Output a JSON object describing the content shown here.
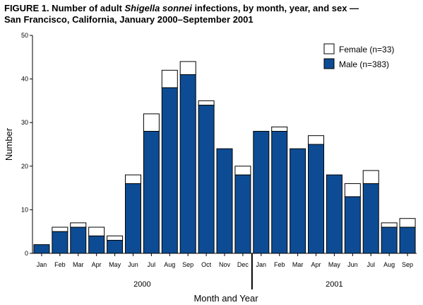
{
  "figure": {
    "title_part1": "FIGURE 1. Number of adult ",
    "title_italic": "Shigella sonnei",
    "title_part2": " infections, by month, year, and sex —",
    "title_line2": "San Francisco, California, January 2000–September 2001"
  },
  "chart_data": {
    "type": "bar",
    "stacked": true,
    "xlabel": "Month and Year",
    "ylabel": "Number",
    "ylim": [
      0,
      50
    ],
    "yticks": [
      0,
      10,
      20,
      30,
      40,
      50
    ],
    "legend_placement": "top-right",
    "grid": false,
    "categories": [
      "Jan",
      "Feb",
      "Mar",
      "Apr",
      "May",
      "Jun",
      "Jul",
      "Aug",
      "Sep",
      "Oct",
      "Nov",
      "Dec",
      "Jan",
      "Feb",
      "Mar",
      "Apr",
      "May",
      "Jun",
      "Jul",
      "Aug",
      "Sep"
    ],
    "year_groups": [
      {
        "label": "2000",
        "start": 0,
        "end": 11
      },
      {
        "label": "2001",
        "start": 12,
        "end": 20
      }
    ],
    "series": [
      {
        "name": "Male (n=383)",
        "color": "#0d4c94",
        "values": [
          2,
          5,
          6,
          4,
          3,
          16,
          28,
          38,
          41,
          34,
          24,
          18,
          28,
          28,
          24,
          25,
          18,
          13,
          16,
          6,
          6
        ]
      },
      {
        "name": "Female (n=33)",
        "color": "#ffffff",
        "values": [
          0,
          1,
          1,
          2,
          1,
          2,
          4,
          4,
          3,
          1,
          0,
          2,
          0,
          1,
          0,
          2,
          0,
          3,
          3,
          1,
          2
        ]
      }
    ]
  }
}
